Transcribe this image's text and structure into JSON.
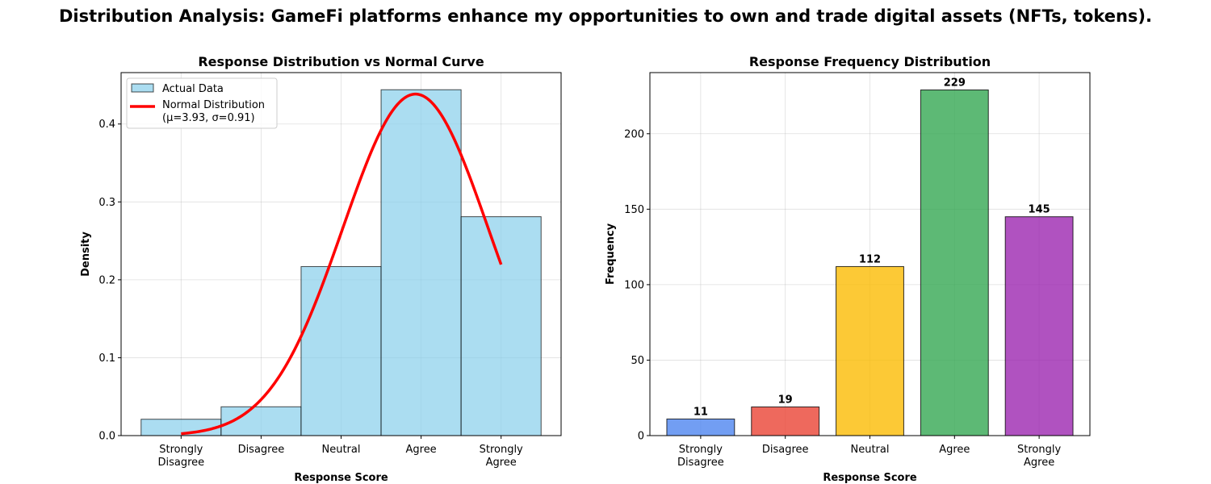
{
  "figure": {
    "title": "Distribution Analysis: GameFi platforms enhance my opportunities to own and trade digital assets (NFTs, tokens)."
  },
  "chart_data": [
    {
      "type": "bar",
      "title": "Response Distribution vs Normal Curve",
      "xlabel": "Response Score",
      "ylabel": "Density",
      "categories": [
        "Strongly\nDisagree",
        "Disagree",
        "Neutral",
        "Agree",
        "Strongly\nAgree"
      ],
      "x": [
        1,
        2,
        3,
        4,
        5
      ],
      "values": [
        0.021,
        0.037,
        0.217,
        0.444,
        0.281
      ],
      "xlim": [
        0.25,
        5.75
      ],
      "ylim": [
        0,
        0.466
      ],
      "yticks": [
        0.0,
        0.1,
        0.2,
        0.3,
        0.4
      ],
      "ytick_labels": [
        "0.0",
        "0.1",
        "0.2",
        "0.3",
        "0.4"
      ],
      "bar_color": "#87ceeb",
      "curve": {
        "name": "Normal Distribution\n(μ=3.93, σ=0.91)",
        "mu": 3.93,
        "sigma": 0.91,
        "x_range": [
          1,
          5
        ],
        "color": "#ff0000"
      },
      "legend": {
        "position": "upper-left",
        "entries": [
          "Actual Data",
          "Normal Distribution\n(μ=3.93, σ=0.91)"
        ]
      },
      "grid": true
    },
    {
      "type": "bar",
      "title": "Response Frequency Distribution",
      "xlabel": "Response Score",
      "ylabel": "Frequency",
      "categories": [
        "Strongly\nDisagree",
        "Disagree",
        "Neutral",
        "Agree",
        "Strongly\nAgree"
      ],
      "values": [
        11,
        19,
        112,
        229,
        145
      ],
      "data_labels": [
        "11",
        "19",
        "112",
        "229",
        "145"
      ],
      "colors": [
        "#4f86f0",
        "#ea4335",
        "#fbbc04",
        "#34a853",
        "#9c27b0"
      ],
      "ylim": [
        0,
        240.5
      ],
      "yticks": [
        0,
        50,
        100,
        150,
        200
      ],
      "ytick_labels": [
        "0",
        "50",
        "100",
        "150",
        "200"
      ],
      "grid": true
    }
  ]
}
